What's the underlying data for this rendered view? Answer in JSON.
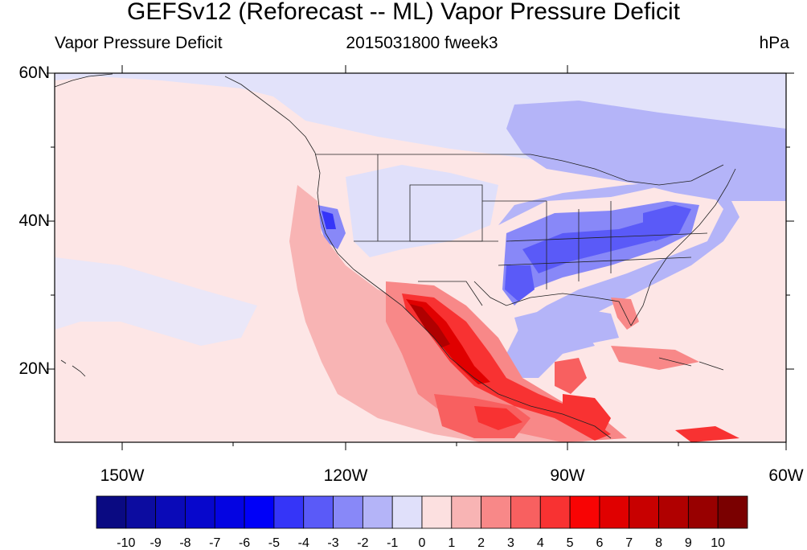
{
  "title": "GEFSv12 (Reforecast -- ML) Vapor Pressure Deficit",
  "subtitle_left": "Vapor Pressure Deficit",
  "subtitle_center": "2015031800 fweek3",
  "subtitle_right": "hPa",
  "y_ticks": [
    "60N",
    "40N",
    "20N"
  ],
  "x_ticks": [
    "150W",
    "120W",
    "90W",
    "60W"
  ],
  "colorbar": {
    "labels": [
      "-10",
      "-9",
      "-8",
      "-7",
      "-6",
      "-5",
      "-4",
      "-3",
      "-2",
      "-1",
      "0",
      "1",
      "2",
      "3",
      "4",
      "5",
      "6",
      "7",
      "8",
      "9",
      "10"
    ],
    "colors": [
      "#0a0a82",
      "#0c0ca0",
      "#0a0ab8",
      "#0707cc",
      "#0404e2",
      "#0000f8",
      "#3535f8",
      "#5a5af8",
      "#8888f8",
      "#b4b4f8",
      "#e0e0fa",
      "#fce0e0",
      "#f8b4b4",
      "#f88888",
      "#f86060",
      "#f83232",
      "#f80404",
      "#e00000",
      "#c80000",
      "#b00000",
      "#980000",
      "#7a0000"
    ]
  },
  "chart_data": {
    "type": "heatmap",
    "title": "GEFSv12 (Reforecast -- ML) Vapor Pressure Deficit",
    "variable": "Vapor Pressure Deficit",
    "valid_label": "2015031800 fweek3",
    "units": "hPa",
    "lon_range": [
      -160,
      -60
    ],
    "lat_range": [
      10,
      60
    ],
    "x_tick_labels": [
      "150W",
      "120W",
      "90W",
      "60W"
    ],
    "y_tick_labels": [
      "20N",
      "40N",
      "60N"
    ],
    "levels": [
      -10,
      -9,
      -8,
      -7,
      -6,
      -5,
      -4,
      -3,
      -2,
      -1,
      0,
      1,
      2,
      3,
      4,
      5,
      6,
      7,
      8,
      9,
      10
    ]
  }
}
